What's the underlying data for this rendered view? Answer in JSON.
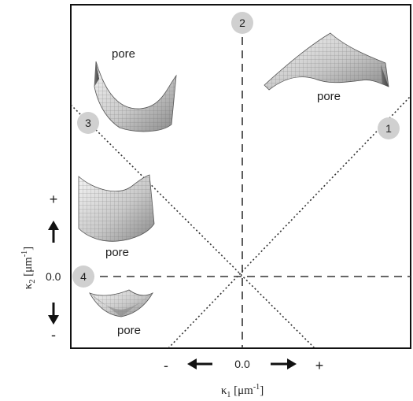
{
  "figure": {
    "x_axis": {
      "symbol": "κ",
      "subscript": "1",
      "unit_open": " [μm",
      "unit_sup": "-1",
      "unit_close": "]",
      "zero": "0.0",
      "minus": "-",
      "plus": "+"
    },
    "y_axis": {
      "symbol": "κ",
      "subscript": "2",
      "unit_open": " [μm",
      "unit_sup": "-1",
      "unit_close": "]",
      "zero": "0.0",
      "minus": "-",
      "plus": "+"
    },
    "markers": [
      "1",
      "2",
      "3",
      "4"
    ],
    "insets": [
      {
        "id": "top-left",
        "label": "pore"
      },
      {
        "id": "top-right",
        "label": "pore"
      },
      {
        "id": "mid-left",
        "label": "pore"
      },
      {
        "id": "bottom-left",
        "label": "pore"
      }
    ]
  }
}
